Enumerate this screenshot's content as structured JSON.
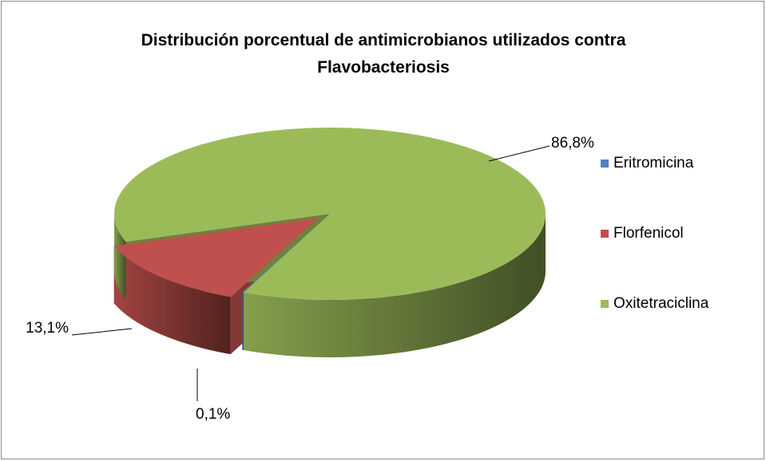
{
  "chart_data": {
    "type": "pie",
    "title": "Distribución porcentual de antimicrobianos utilizados contra Flavobacteriosis",
    "categories": [
      "Eritromicina",
      "Florfenicol",
      "Oxitetraciclina"
    ],
    "values": [
      0.1,
      13.1,
      86.8
    ],
    "value_labels": [
      "0,1%",
      "13,1%",
      "86,8%"
    ],
    "colors": [
      "#4f81bd",
      "#c0504d",
      "#9bbb59"
    ],
    "legend": "right"
  }
}
